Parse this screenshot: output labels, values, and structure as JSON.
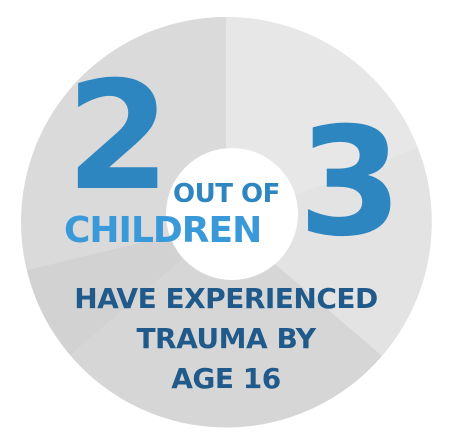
{
  "infographic": {
    "number_two": "2",
    "out_of": "OUT OF",
    "children": "CHILDREN",
    "number_three": "3",
    "caption_lines": [
      "HAVE EXPERIENCED",
      "TRAUMA BY",
      "AGE 16"
    ]
  },
  "colors": {
    "number_blue": "#2e86c1",
    "children_blue": "#3a9ad9",
    "caption_navy": "#1f5a8a",
    "circle_gray": "#dcdcdc",
    "segment_light": "#e8e8e8",
    "segment_dark": "#cfcfcf",
    "center_white": "#ffffff"
  }
}
